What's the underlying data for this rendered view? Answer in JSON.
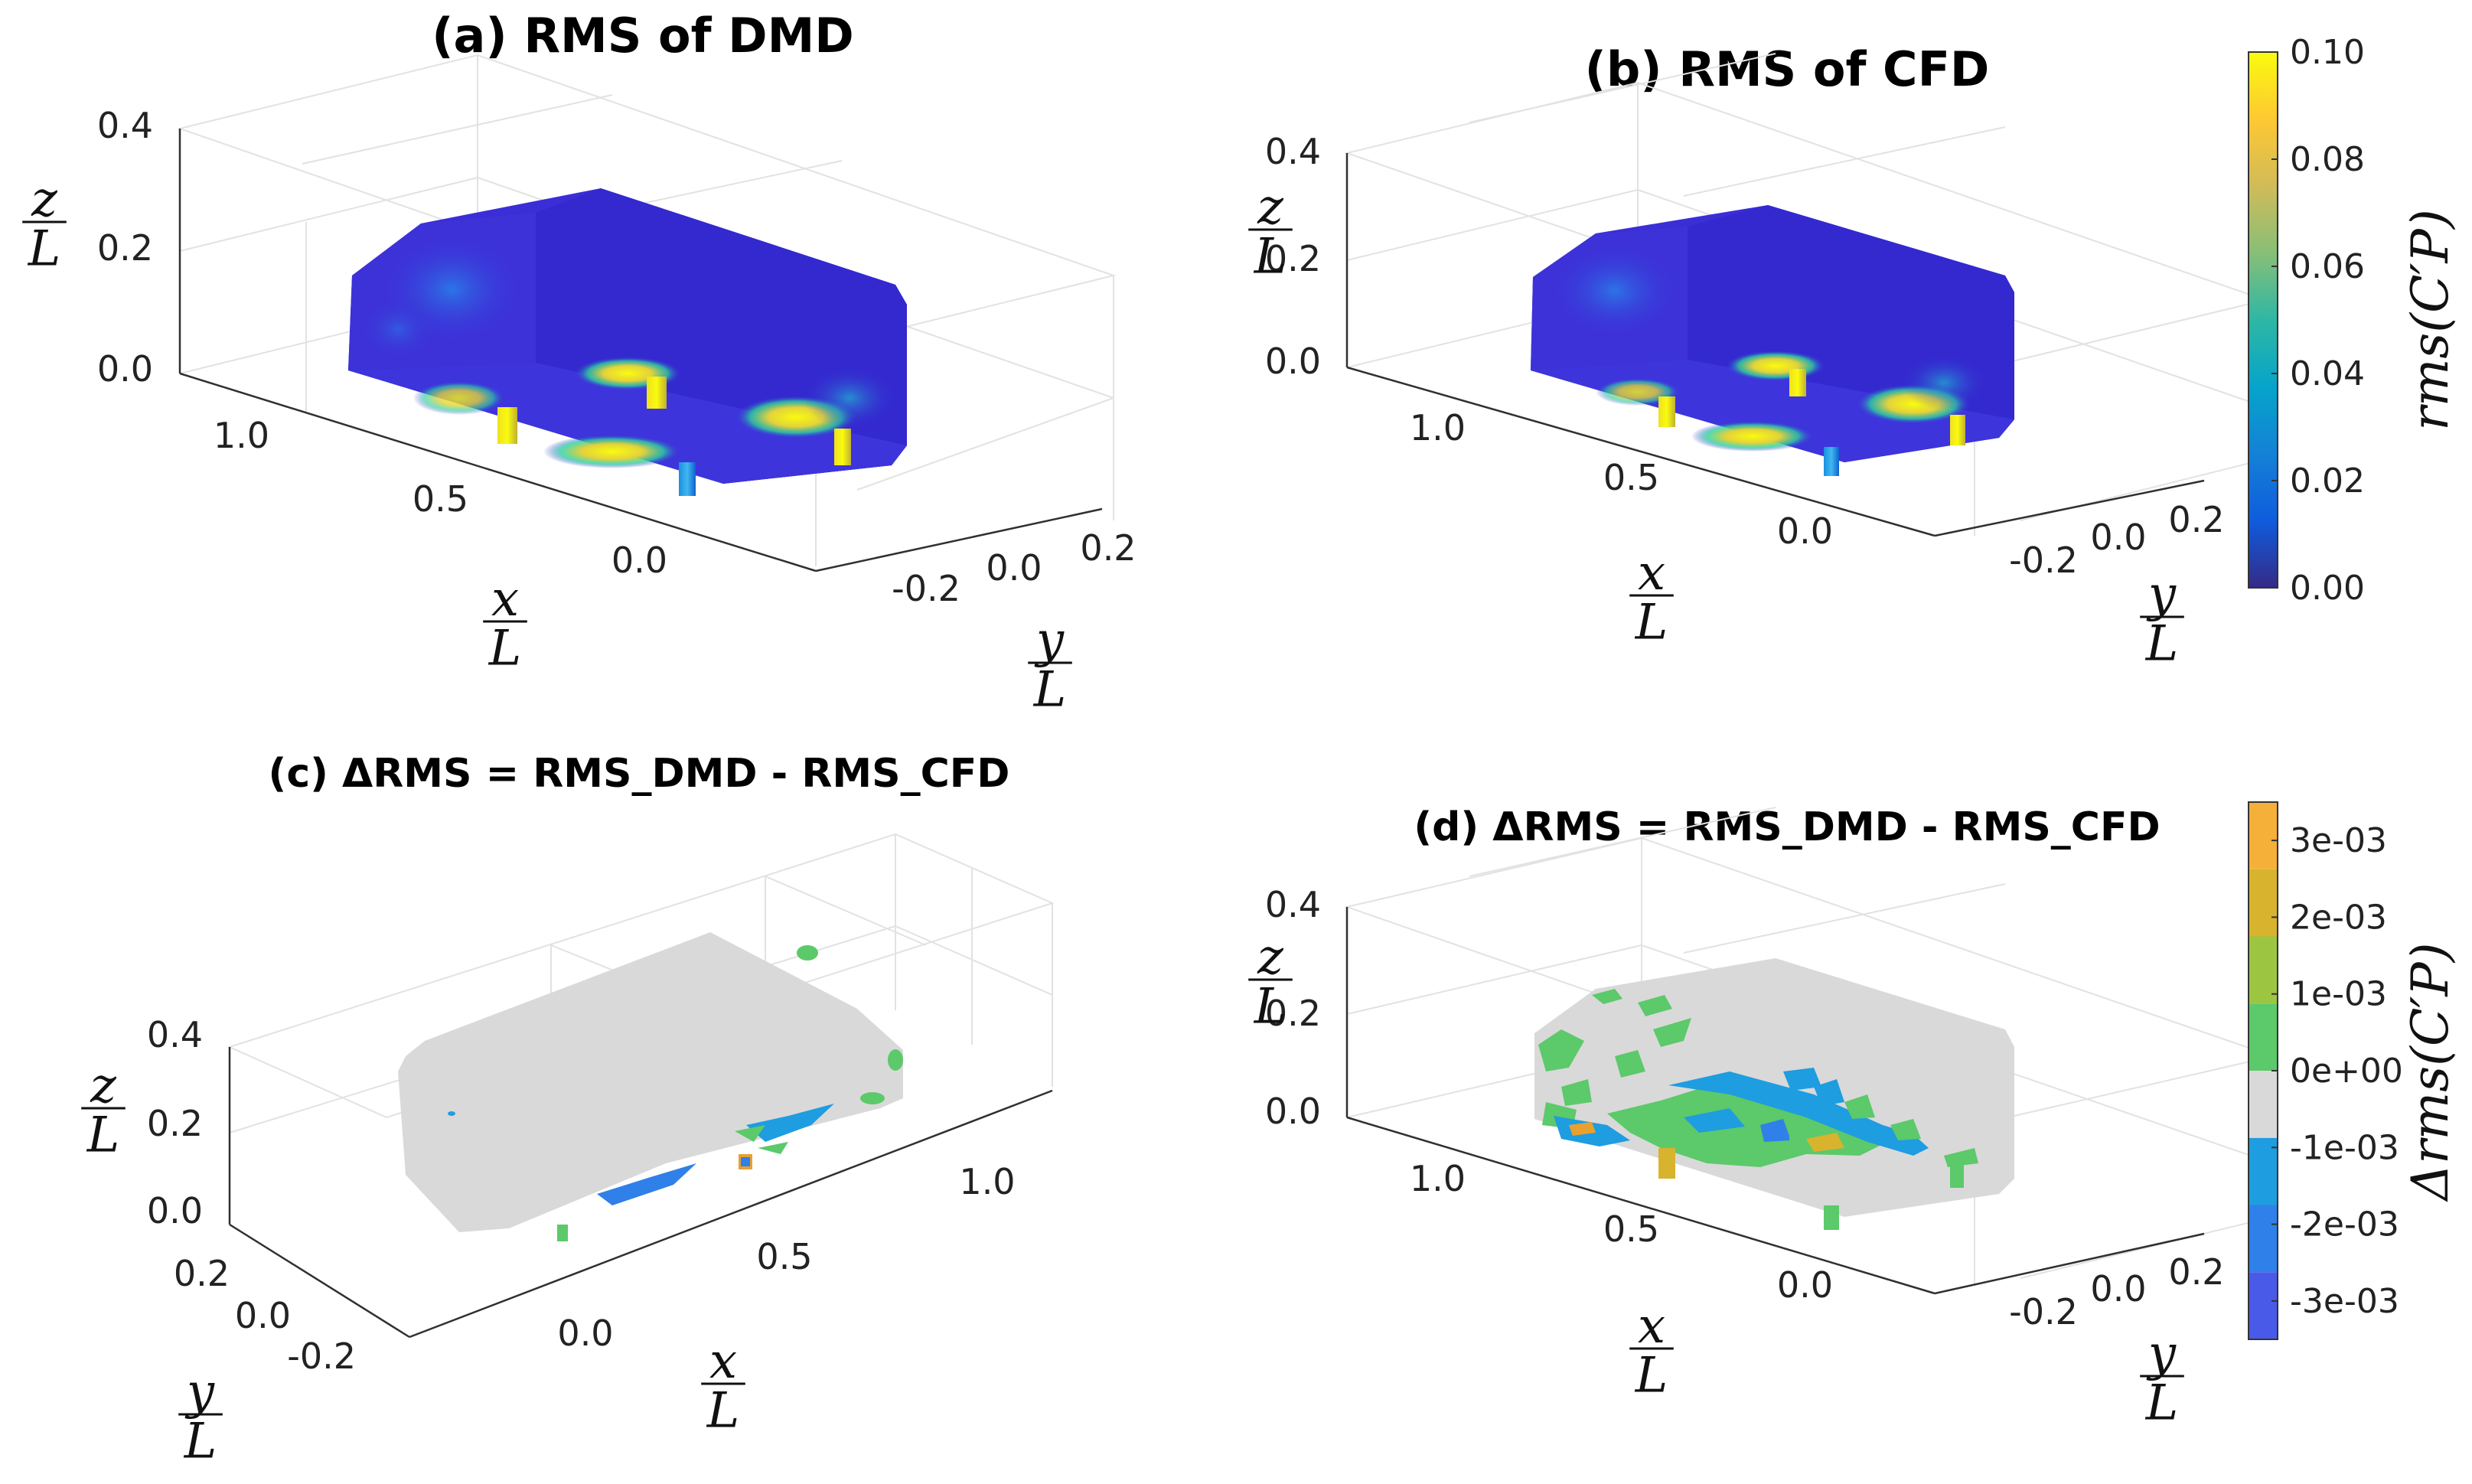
{
  "chart_data": [
    {
      "type": "heatmap",
      "panel": "a",
      "title": "(a) RMS of DMD",
      "xlabel": "x/L",
      "ylabel": "y/L",
      "zlabel": "z/L",
      "x_ticks": [
        "1.0",
        "0.5",
        "0.0"
      ],
      "y_ticks": [
        "-0.2",
        "0.0",
        "0.2"
      ],
      "z_ticks": [
        "0.4",
        "0.2",
        "0.0"
      ],
      "xlim": [
        -0.1,
        1.2
      ],
      "ylim": [
        -0.3,
        0.3
      ],
      "zlim": [
        0.0,
        0.4
      ],
      "colorbar": "rms"
    },
    {
      "type": "heatmap",
      "panel": "b",
      "title": "(b) RMS of CFD",
      "xlabel": "x/L",
      "ylabel": "y/L",
      "zlabel": "z/L",
      "x_ticks": [
        "1.0",
        "0.5",
        "0.0"
      ],
      "y_ticks": [
        "-0.2",
        "0.0",
        "0.2"
      ],
      "z_ticks": [
        "0.4",
        "0.2",
        "0.0"
      ],
      "xlim": [
        -0.1,
        1.2
      ],
      "ylim": [
        -0.3,
        0.3
      ],
      "zlim": [
        0.0,
        0.4
      ],
      "colorbar": "rms"
    },
    {
      "type": "heatmap",
      "panel": "c",
      "title": "(c) ΔRMS = RMS_DMD - RMS_CFD",
      "xlabel": "x/L",
      "ylabel": "y/L",
      "zlabel": "z/L",
      "x_ticks": [
        "0.0",
        "0.5",
        "1.0"
      ],
      "y_ticks": [
        "0.2",
        "0.0",
        "-0.2"
      ],
      "z_ticks": [
        "0.4",
        "0.2",
        "0.0"
      ],
      "xlim": [
        -0.1,
        1.2
      ],
      "ylim": [
        -0.3,
        0.3
      ],
      "zlim": [
        0.0,
        0.4
      ],
      "colorbar": "delta"
    },
    {
      "type": "heatmap",
      "panel": "d",
      "title": "(d) ΔRMS = RMS_DMD - RMS_CFD",
      "xlabel": "x/L",
      "ylabel": "y/L",
      "zlabel": "z/L",
      "x_ticks": [
        "1.0",
        "0.5",
        "0.0"
      ],
      "y_ticks": [
        "-0.2",
        "0.0",
        "0.2"
      ],
      "z_ticks": [
        "0.4",
        "0.2",
        "0.0"
      ],
      "xlim": [
        -0.1,
        1.2
      ],
      "ylim": [
        -0.3,
        0.3
      ],
      "zlim": [
        0.0,
        0.4
      ],
      "colorbar": "delta"
    }
  ],
  "colorbars": {
    "rms": {
      "label": "rms(C′P)",
      "range": [
        0.0,
        0.1
      ],
      "ticks": [
        "0.10",
        "0.08",
        "0.06",
        "0.04",
        "0.02",
        "0.00"
      ],
      "colormap": "parula",
      "colors": [
        "#352a87",
        "#0f5cdd",
        "#1481d6",
        "#06a4ca",
        "#2eb7a4",
        "#87bf77",
        "#d1bb59",
        "#fec832",
        "#f9fb0e"
      ]
    },
    "delta": {
      "label": "Δrms(C′P)",
      "range": [
        -0.0035,
        0.0035
      ],
      "ticks": [
        "3e-03",
        "2e-03",
        "1e-03",
        "0e+00",
        "-1e-03",
        "-2e-03",
        "-3e-03"
      ],
      "levels": [
        -0.003,
        -0.002,
        -0.001,
        0.0,
        0.001,
        0.002,
        0.003
      ],
      "colors": [
        "#4a5ae8",
        "#2f80e8",
        "#1e9de0",
        "#d9d9d9",
        "#5cc96a",
        "#9cc642",
        "#d8b32d",
        "#f5b03a"
      ]
    }
  },
  "surface_colors": {
    "body": "#3a2ed6",
    "body_light": "#4a40e0",
    "hot": "#f7e821",
    "warm": "#2ad0a0",
    "mid": "#1a8fe0",
    "gray": "#d9d9d9",
    "green": "#5cc96a",
    "blue": "#1e9de0",
    "orange": "#e8a030"
  }
}
